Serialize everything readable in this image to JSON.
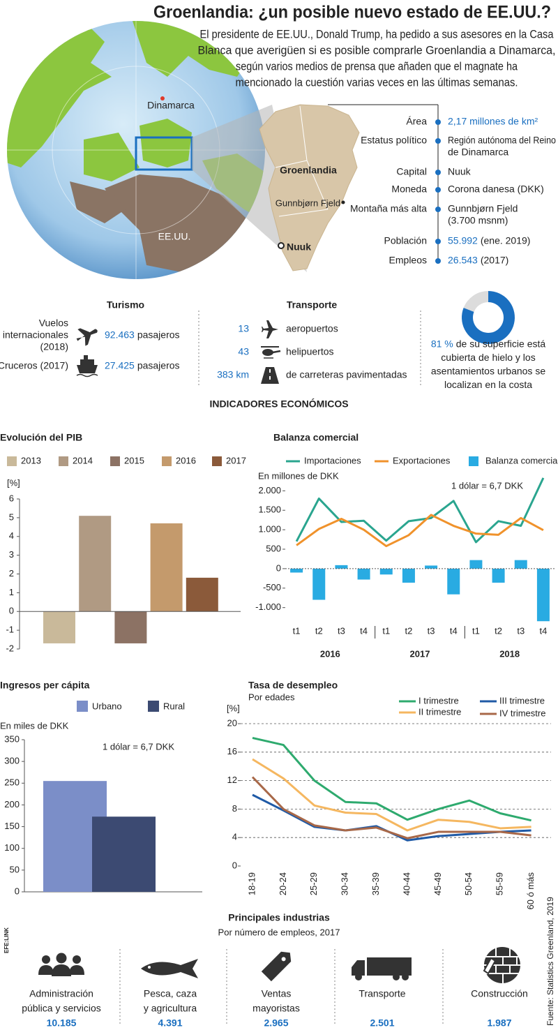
{
  "header": {
    "title": "Groenlandia: ¿un posible nuevo estado de EE.UU.?",
    "lines": [
      "El presidente de EE.UU., Donald Trump, ha pedido a sus asesores en la Casa",
      "Blanca que averigüen si es posible comprarle Groenlandia a Dinamarca,",
      "según varios medios de prensa que añaden que el magnate ha",
      "mencionado la cuestión varias veces en las últimas semanas."
    ]
  },
  "map": {
    "labels": [
      "Dinamarca",
      "EE.UU.",
      "Groenlandia",
      "Gunnbjørn Fjeld",
      "Nuuk"
    ]
  },
  "facts": [
    {
      "label": "Área",
      "value": [
        "2,17 millones de km²"
      ],
      "value_color": "#1a6fc0"
    },
    {
      "label": "Estatus político",
      "value": [
        "Región autónoma del Reino",
        "de Dinamarca"
      ]
    },
    {
      "label": "Capital",
      "value": [
        "Nuuk"
      ]
    },
    {
      "label": "Moneda",
      "value": [
        "Corona danesa (DKK)"
      ]
    },
    {
      "label": "Montaña más alta",
      "value": [
        "Gunnbjørn Fjeld",
        "(3.700 msnm)"
      ]
    },
    {
      "label": "Población",
      "value": [
        "55.992"
      ],
      "note": "(ene. 2019)",
      "value_color": "#1a6fc0"
    },
    {
      "label": "Empleos",
      "value": [
        "26.543"
      ],
      "note": "(2017)",
      "value_color": "#1a6fc0"
    }
  ],
  "tourism": {
    "title": "Turismo",
    "items": [
      {
        "label": [
          "Vuelos",
          "internacionales",
          "(2018)"
        ],
        "value": "92.463",
        "unit": "pasajeros"
      },
      {
        "label": [
          "Cruceros (2017)"
        ],
        "value": "27.425",
        "unit": "pasajeros"
      }
    ]
  },
  "transport": {
    "title": "Transporte",
    "items": [
      {
        "value": "13",
        "unit": "aeropuertos"
      },
      {
        "value": "43",
        "unit": "helipuertos"
      },
      {
        "value": "383 km",
        "unit": "de carreteras pavimentadas"
      }
    ]
  },
  "section_title": "INDICADORES ECONÓMICOS",
  "chart_data": [
    {
      "type": "bar",
      "title": "Evolución del PIB",
      "y_label": "[%]",
      "categories": [
        "2013",
        "2014",
        "2015",
        "2016",
        "2017"
      ],
      "values": [
        -1.7,
        5.1,
        -1.7,
        4.7,
        1.8
      ],
      "colors": [
        "#c9b99a",
        "#b09a83",
        "#8c7264",
        "#c49a6c",
        "#8b5a3a"
      ],
      "ylim": [
        -2,
        6
      ],
      "yticks": [
        -2,
        -1,
        0,
        1,
        2,
        3,
        4,
        5,
        6
      ],
      "grid": false
    },
    {
      "type": "line-bar",
      "title": "Balanza comercial",
      "y_label": "En millones de DKK",
      "annotation": "1 dólar = 6,7 DKK",
      "categories": [
        "t1",
        "t2",
        "t3",
        "t4",
        "t1",
        "t2",
        "t3",
        "t4",
        "t1",
        "t2",
        "t3",
        "t4"
      ],
      "group_labels": [
        "2016",
        "2017",
        "2018"
      ],
      "series": [
        {
          "name": "Importaciones",
          "color": "#2aa58f",
          "kind": "line",
          "values": [
            700,
            1800,
            1200,
            1230,
            720,
            1220,
            1300,
            1740,
            680,
            1220,
            1100,
            2330
          ]
        },
        {
          "name": "Exportaciones",
          "color": "#f0922b",
          "kind": "line",
          "values": [
            600,
            1020,
            1280,
            1000,
            580,
            860,
            1380,
            1100,
            900,
            870,
            1300,
            990
          ]
        },
        {
          "name": "Balanza comercial",
          "color": "#29abe2",
          "kind": "bar",
          "values": [
            -100,
            -800,
            90,
            -280,
            -150,
            -360,
            80,
            -660,
            220,
            -360,
            220,
            -1350
          ]
        }
      ],
      "ylim": [
        -1400,
        2400
      ],
      "yticks": [
        {
          "value": -1000,
          "label": "-1.000"
        },
        -500,
        0,
        500,
        {
          "value": 1000,
          "label": "1.000"
        },
        {
          "value": 1500,
          "label": "1.500"
        },
        {
          "value": 2000,
          "label": "2.000"
        }
      ],
      "grid": false
    },
    {
      "type": "bar",
      "title": "Ingresos per cápita",
      "y_label": "En miles de DKK",
      "annotation": "1 dólar = 6,7 DKK",
      "categories": [
        null
      ],
      "series": [
        {
          "name": "Urbano",
          "color": "#7b8ec8",
          "values": [
            255
          ]
        },
        {
          "name": "Rural",
          "color": "#3c4a72",
          "values": [
            173
          ]
        }
      ],
      "ylim": [
        0,
        350
      ],
      "yticks": [
        0,
        50,
        100,
        150,
        200,
        250,
        300,
        350
      ],
      "grid": false
    },
    {
      "type": "line",
      "title": "Tasa de desempleo",
      "subtitle": "Por edades",
      "y_label": "[%]",
      "categories": [
        "18-19",
        "20-24",
        "25-29",
        "30-34",
        "35-39",
        "40-44",
        "45-49",
        "50-54",
        "55-59",
        "60 ó más"
      ],
      "series": [
        {
          "name": "I trimestre",
          "color": "#2eaa6e",
          "values": [
            18,
            17,
            12,
            9,
            8.8,
            6.5,
            8,
            9.2,
            7.4,
            6.4
          ]
        },
        {
          "name": "II trimestre",
          "color": "#f5b760",
          "values": [
            15,
            12.3,
            8.5,
            7.5,
            7.3,
            5,
            6.5,
            6.2,
            5.3,
            5.5
          ]
        },
        {
          "name": "III trimestre",
          "color": "#1f5aa6",
          "values": [
            10,
            7.8,
            5.5,
            5,
            5.6,
            3.6,
            4.2,
            4.5,
            4.8,
            5
          ]
        },
        {
          "name": "IV trimestre",
          "color": "#a86848",
          "values": [
            12.5,
            8,
            5.7,
            5,
            5.4,
            3.9,
            4.8,
            4.8,
            4.8,
            4.3
          ]
        }
      ],
      "ylim": [
        0,
        20
      ],
      "yticks": [
        0,
        4,
        8,
        12,
        16,
        20
      ],
      "grid": true
    },
    {
      "type": "donut",
      "values": [
        81,
        19
      ],
      "colors": [
        "#1a6fc0",
        "#dcdcdc"
      ],
      "value_labels": [
        "81 %",
        null
      ],
      "caption": [
        "de su superficie está",
        "cubierta de hielo y los",
        "asentamientos urbanos se",
        "localizan en la costa"
      ]
    }
  ],
  "industries": {
    "title": "Principales industrias",
    "subtitle": "Por número de empleos, 2017",
    "items": [
      {
        "label": [
          "Administración",
          "pública y servicios"
        ],
        "value": "10.185"
      },
      {
        "label": [
          "Pesca, caza",
          "y agricultura"
        ],
        "value": "4.391"
      },
      {
        "label": [
          "Ventas",
          "mayoristas"
        ],
        "value": "2.965"
      },
      {
        "label": [
          "Transporte"
        ],
        "value": "2.501"
      },
      {
        "label": [
          "Construcción"
        ],
        "value": "1.987"
      }
    ]
  },
  "source": "Fuente: Statistics Greenland, 2019",
  "brand": "EFE:LINK"
}
